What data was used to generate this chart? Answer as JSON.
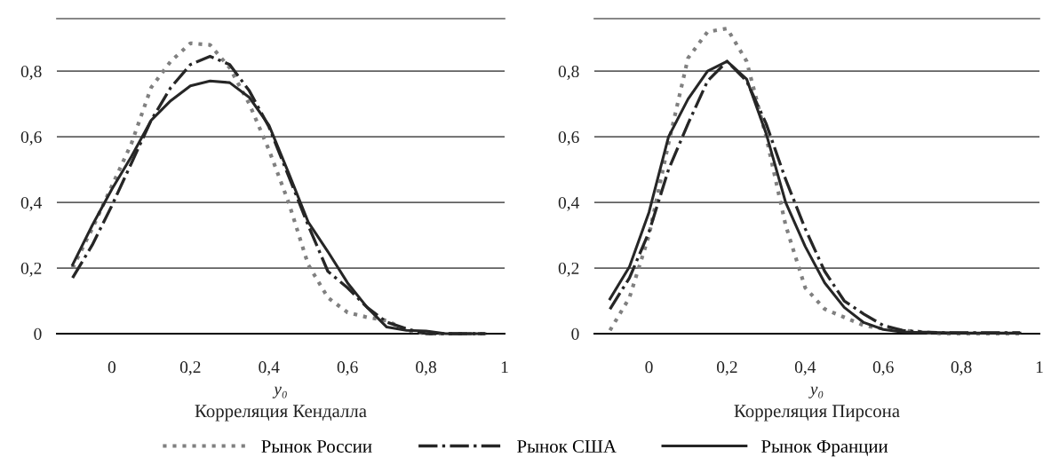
{
  "chart_data": [
    {
      "type": "line",
      "xlabel": "y₀",
      "annotations": [
        "Корреляция Кендалла"
      ],
      "grid": "y",
      "legend": "bottom",
      "x": [
        -0.1,
        -0.05,
        0,
        0.05,
        0.1,
        0.15,
        0.2,
        0.25,
        0.3,
        0.35,
        0.4,
        0.45,
        0.5,
        0.55,
        0.6,
        0.65,
        0.7,
        0.75,
        0.8,
        0.85,
        0.9,
        0.95
      ],
      "xlim": [
        -0.14,
        1.0
      ],
      "ylim": [
        0,
        0.96
      ],
      "xticks": [
        0,
        {
          "value": 0.2,
          "label": "0,2"
        },
        {
          "value": 0.4,
          "label": "0,4"
        },
        {
          "value": 0.6,
          "label": "0,6"
        },
        {
          "value": 0.8,
          "label": "0,8"
        },
        1
      ],
      "yticks": [
        0,
        {
          "value": 0.2,
          "label": "0,2"
        },
        {
          "value": 0.4,
          "label": "0,4"
        },
        {
          "value": 0.6,
          "label": "0,6"
        },
        {
          "value": 0.8,
          "label": "0,8"
        }
      ],
      "series": [
        {
          "name": "Рынок России",
          "color": "#808080",
          "line_style": "dotted",
          "values": [
            0.2,
            0.32,
            0.45,
            0.58,
            0.75,
            0.83,
            0.885,
            0.88,
            0.81,
            0.7,
            0.56,
            0.4,
            0.21,
            0.11,
            0.065,
            0.05,
            0.04,
            0.01,
            0,
            0,
            0,
            0
          ]
        },
        {
          "name": "Рынок США",
          "color": "#262626",
          "line_style": "dashdot",
          "values": [
            0.17,
            0.27,
            0.39,
            0.52,
            0.65,
            0.75,
            0.82,
            0.845,
            0.82,
            0.74,
            0.63,
            0.48,
            0.33,
            0.19,
            0.14,
            0.08,
            0.035,
            0.015,
            0,
            0,
            0,
            0
          ]
        },
        {
          "name": "Рынок Франции",
          "color": "#262626",
          "line_style": "solid",
          "values": [
            0.21,
            0.33,
            0.44,
            0.54,
            0.65,
            0.71,
            0.755,
            0.77,
            0.765,
            0.72,
            0.635,
            0.49,
            0.34,
            0.25,
            0.155,
            0.08,
            0.02,
            0.01,
            0.008,
            0,
            0,
            0
          ]
        }
      ]
    },
    {
      "type": "line",
      "xlabel": "y₀",
      "annotations": [
        "Корреляция Пирсона"
      ],
      "grid": "y",
      "x": [
        -0.1,
        -0.05,
        0,
        0.05,
        0.1,
        0.15,
        0.2,
        0.25,
        0.3,
        0.35,
        0.4,
        0.45,
        0.5,
        0.55,
        0.6,
        0.65,
        0.7,
        0.75,
        0.8,
        0.85,
        0.9,
        0.95
      ],
      "xlim": [
        -0.14,
        1.0
      ],
      "ylim": [
        0,
        0.96
      ],
      "xticks": [
        0,
        {
          "value": 0.2,
          "label": "0,2"
        },
        {
          "value": 0.4,
          "label": "0,4"
        },
        {
          "value": 0.6,
          "label": "0,6"
        },
        {
          "value": 0.8,
          "label": "0,8"
        },
        1
      ],
      "yticks": [
        0,
        {
          "value": 0.2,
          "label": "0,2"
        },
        {
          "value": 0.4,
          "label": "0,4"
        },
        {
          "value": 0.6,
          "label": "0,6"
        },
        {
          "value": 0.8,
          "label": "0,8"
        }
      ],
      "series": [
        {
          "color": "#808080",
          "line_style": "dotted",
          "values": [
            0.01,
            0.11,
            0.3,
            0.58,
            0.84,
            0.92,
            0.93,
            0.83,
            0.6,
            0.33,
            0.14,
            0.075,
            0.05,
            0.025,
            0.015,
            0.01,
            0.005,
            0,
            0,
            0,
            0,
            0
          ]
        },
        {
          "color": "#262626",
          "line_style": "dashdot",
          "values": [
            0.075,
            0.17,
            0.31,
            0.5,
            0.64,
            0.77,
            0.83,
            0.77,
            0.64,
            0.47,
            0.32,
            0.19,
            0.1,
            0.06,
            0.025,
            0.01,
            0.005,
            0.003,
            0.003,
            0.003,
            0.003,
            0.003
          ]
        },
        {
          "color": "#262626",
          "line_style": "solid",
          "values": [
            0.106,
            0.204,
            0.37,
            0.6,
            0.715,
            0.8,
            0.83,
            0.776,
            0.61,
            0.4,
            0.266,
            0.155,
            0.08,
            0.034,
            0.013,
            0.005,
            0.003,
            0.003,
            0.002,
            0.002,
            0.002,
            0.002
          ]
        }
      ]
    }
  ]
}
